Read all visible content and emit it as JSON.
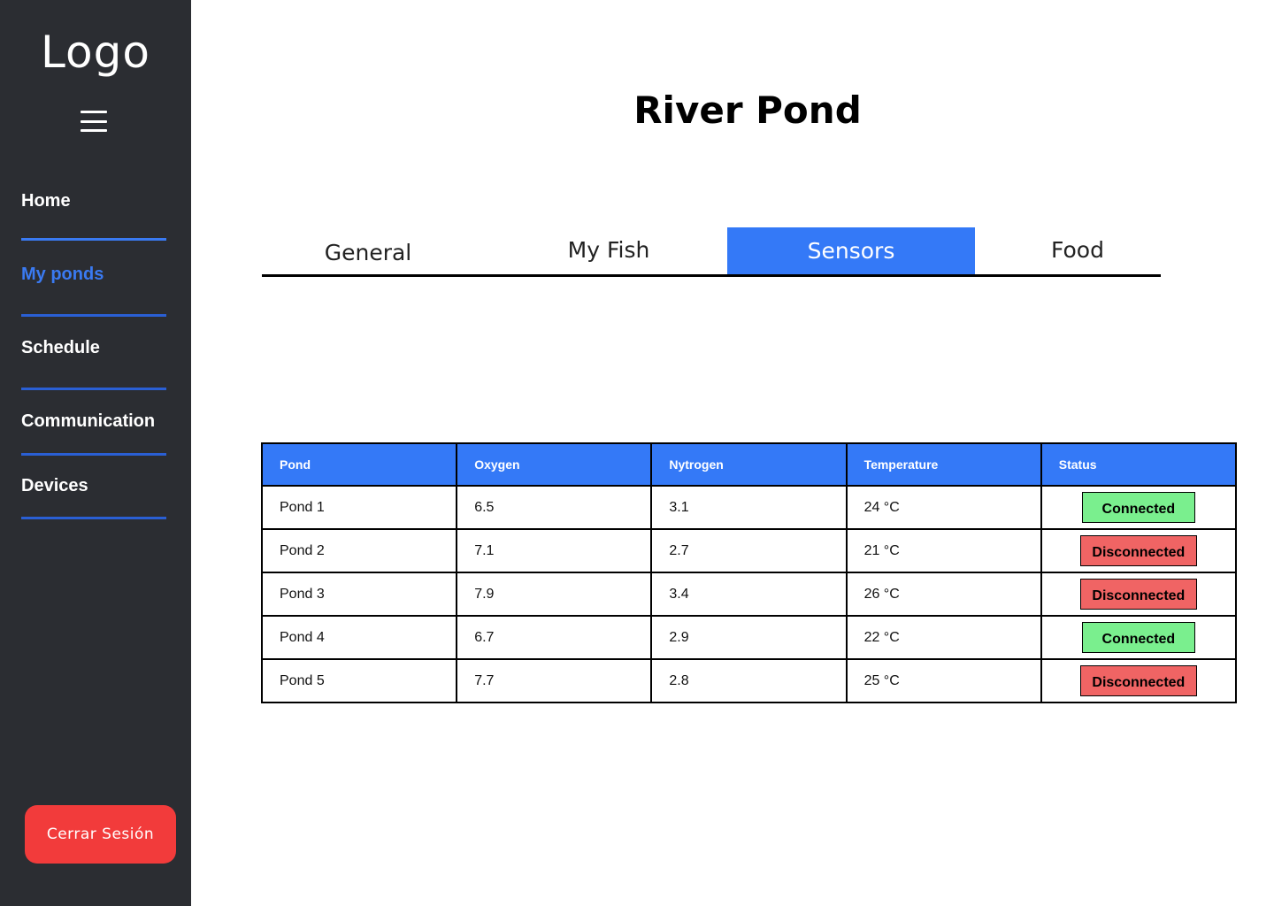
{
  "sidebar": {
    "logo": "Logo",
    "menu_icon": "hamburger-menu-icon",
    "items": [
      {
        "label": "Home"
      },
      {
        "label": "My ponds"
      },
      {
        "label": "Schedule"
      },
      {
        "label": "Communication"
      },
      {
        "label": "Devices"
      }
    ],
    "logout_label": "Cerrar Sesión"
  },
  "main": {
    "title": "River Pond",
    "tabs": [
      {
        "label": "General"
      },
      {
        "label": "My Fish"
      },
      {
        "label": "Sensors"
      },
      {
        "label": "Food"
      }
    ],
    "active_tab": "Sensors"
  },
  "table": {
    "columns": [
      "Pond",
      "Oxygen",
      "Nytrogen",
      "Temperature",
      "Status"
    ],
    "rows": [
      {
        "pond": "Pond 1",
        "oxygen": "6.5",
        "nitrogen": "3.1",
        "temperature": "24 °C",
        "status": "Connected"
      },
      {
        "pond": "Pond 2",
        "oxygen": "7.1",
        "nitrogen": "2.7",
        "temperature": "21 °C",
        "status": "Disconnected"
      },
      {
        "pond": "Pond 3",
        "oxygen": "7.9",
        "nitrogen": "3.4",
        "temperature": "26 °C",
        "status": "Disconnected"
      },
      {
        "pond": "Pond 4",
        "oxygen": "6.7",
        "nitrogen": "2.9",
        "temperature": "22 °C",
        "status": "Connected"
      },
      {
        "pond": "Pond 5",
        "oxygen": "7.7",
        "nitrogen": "2.8",
        "temperature": "25 °C",
        "status": "Disconnected"
      }
    ]
  },
  "colors": {
    "sidebar_bg": "#2b2d32",
    "accent": "#3479f7",
    "connected": "#7aef8e",
    "disconnected": "#f06464",
    "logout": "#f23b3b"
  }
}
